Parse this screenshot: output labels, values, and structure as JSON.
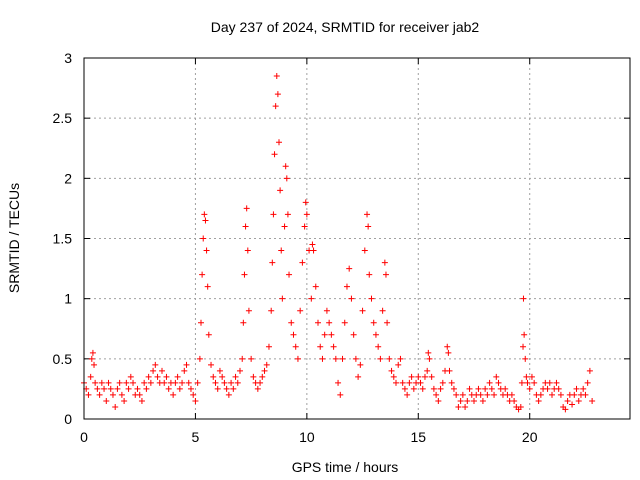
{
  "chart_data": {
    "type": "scatter",
    "title": "Day 237 of 2024, SRMTID for receiver jab2",
    "xlabel": "GPS time / hours",
    "ylabel": "SRMTID / TECUs",
    "xlim": [
      0,
      24.5
    ],
    "ylim": [
      0,
      3
    ],
    "xticks": [
      0,
      5,
      10,
      15,
      20
    ],
    "yticks": [
      0,
      0.5,
      1,
      1.5,
      2,
      2.5,
      3
    ],
    "xtick_labels": [
      "0",
      "5",
      "10",
      "15",
      "20"
    ],
    "ytick_labels": [
      "0",
      "0.5",
      "1",
      "1.5",
      "2",
      "2.5",
      "3"
    ],
    "grid": true,
    "marker": "+",
    "color": "#ff0000",
    "series": [
      {
        "name": "jab2",
        "points": [
          [
            0.0,
            0.3
          ],
          [
            0.1,
            0.25
          ],
          [
            0.2,
            0.2
          ],
          [
            0.3,
            0.35
          ],
          [
            0.35,
            0.5
          ],
          [
            0.4,
            0.55
          ],
          [
            0.45,
            0.45
          ],
          [
            0.5,
            0.3
          ],
          [
            0.6,
            0.25
          ],
          [
            0.7,
            0.2
          ],
          [
            0.8,
            0.3
          ],
          [
            0.9,
            0.25
          ],
          [
            1.0,
            0.15
          ],
          [
            1.1,
            0.3
          ],
          [
            1.2,
            0.25
          ],
          [
            1.3,
            0.2
          ],
          [
            1.4,
            0.1
          ],
          [
            1.5,
            0.25
          ],
          [
            1.6,
            0.3
          ],
          [
            1.7,
            0.2
          ],
          [
            1.8,
            0.15
          ],
          [
            1.9,
            0.3
          ],
          [
            2.0,
            0.25
          ],
          [
            2.1,
            0.35
          ],
          [
            2.2,
            0.3
          ],
          [
            2.3,
            0.2
          ],
          [
            2.4,
            0.25
          ],
          [
            2.5,
            0.2
          ],
          [
            2.6,
            0.15
          ],
          [
            2.7,
            0.3
          ],
          [
            2.8,
            0.25
          ],
          [
            2.9,
            0.35
          ],
          [
            3.0,
            0.3
          ],
          [
            3.1,
            0.4
          ],
          [
            3.2,
            0.45
          ],
          [
            3.3,
            0.35
          ],
          [
            3.4,
            0.3
          ],
          [
            3.5,
            0.4
          ],
          [
            3.6,
            0.3
          ],
          [
            3.7,
            0.35
          ],
          [
            3.8,
            0.25
          ],
          [
            3.9,
            0.3
          ],
          [
            4.0,
            0.2
          ],
          [
            4.1,
            0.3
          ],
          [
            4.2,
            0.35
          ],
          [
            4.3,
            0.25
          ],
          [
            4.4,
            0.3
          ],
          [
            4.5,
            0.4
          ],
          [
            4.6,
            0.45
          ],
          [
            4.7,
            0.3
          ],
          [
            4.8,
            0.25
          ],
          [
            4.9,
            0.2
          ],
          [
            5.0,
            0.15
          ],
          [
            5.1,
            0.3
          ],
          [
            5.2,
            0.5
          ],
          [
            5.25,
            0.8
          ],
          [
            5.3,
            1.2
          ],
          [
            5.35,
            1.5
          ],
          [
            5.4,
            1.7
          ],
          [
            5.45,
            1.65
          ],
          [
            5.5,
            1.4
          ],
          [
            5.55,
            1.1
          ],
          [
            5.6,
            0.7
          ],
          [
            5.7,
            0.45
          ],
          [
            5.8,
            0.35
          ],
          [
            5.9,
            0.3
          ],
          [
            6.0,
            0.25
          ],
          [
            6.1,
            0.4
          ],
          [
            6.2,
            0.35
          ],
          [
            6.3,
            0.3
          ],
          [
            6.4,
            0.25
          ],
          [
            6.5,
            0.2
          ],
          [
            6.6,
            0.3
          ],
          [
            6.7,
            0.25
          ],
          [
            6.8,
            0.35
          ],
          [
            6.9,
            0.3
          ],
          [
            7.0,
            0.4
          ],
          [
            7.1,
            0.5
          ],
          [
            7.15,
            0.8
          ],
          [
            7.2,
            1.2
          ],
          [
            7.25,
            1.6
          ],
          [
            7.3,
            1.75
          ],
          [
            7.35,
            1.4
          ],
          [
            7.4,
            0.9
          ],
          [
            7.5,
            0.5
          ],
          [
            7.6,
            0.35
          ],
          [
            7.7,
            0.3
          ],
          [
            7.8,
            0.25
          ],
          [
            7.9,
            0.3
          ],
          [
            8.0,
            0.35
          ],
          [
            8.1,
            0.4
          ],
          [
            8.2,
            0.45
          ],
          [
            8.3,
            0.6
          ],
          [
            8.4,
            0.9
          ],
          [
            8.45,
            1.3
          ],
          [
            8.5,
            1.7
          ],
          [
            8.55,
            2.2
          ],
          [
            8.6,
            2.6
          ],
          [
            8.65,
            2.85
          ],
          [
            8.7,
            2.7
          ],
          [
            8.75,
            2.3
          ],
          [
            8.8,
            1.9
          ],
          [
            8.85,
            1.4
          ],
          [
            8.9,
            1.0
          ],
          [
            9.0,
            1.6
          ],
          [
            9.05,
            2.1
          ],
          [
            9.1,
            2.0
          ],
          [
            9.15,
            1.7
          ],
          [
            9.2,
            1.2
          ],
          [
            9.3,
            0.8
          ],
          [
            9.4,
            0.7
          ],
          [
            9.5,
            0.6
          ],
          [
            9.6,
            0.5
          ],
          [
            9.7,
            0.9
          ],
          [
            9.8,
            1.3
          ],
          [
            9.9,
            1.6
          ],
          [
            9.95,
            1.8
          ],
          [
            10.0,
            1.7
          ],
          [
            10.1,
            1.4
          ],
          [
            10.2,
            1.0
          ],
          [
            10.25,
            1.45
          ],
          [
            10.3,
            1.4
          ],
          [
            10.4,
            1.1
          ],
          [
            10.5,
            0.8
          ],
          [
            10.6,
            0.6
          ],
          [
            10.7,
            0.5
          ],
          [
            10.8,
            0.7
          ],
          [
            10.9,
            0.9
          ],
          [
            11.0,
            0.8
          ],
          [
            11.1,
            0.7
          ],
          [
            11.2,
            0.6
          ],
          [
            11.3,
            0.5
          ],
          [
            11.4,
            0.3
          ],
          [
            11.5,
            0.2
          ],
          [
            11.6,
            0.5
          ],
          [
            11.7,
            0.8
          ],
          [
            11.8,
            1.1
          ],
          [
            11.9,
            1.25
          ],
          [
            12.0,
            1.0
          ],
          [
            12.1,
            0.7
          ],
          [
            12.2,
            0.5
          ],
          [
            12.3,
            0.35
          ],
          [
            12.4,
            0.45
          ],
          [
            12.5,
            0.9
          ],
          [
            12.6,
            1.4
          ],
          [
            12.7,
            1.7
          ],
          [
            12.75,
            1.6
          ],
          [
            12.8,
            1.2
          ],
          [
            12.9,
            1.0
          ],
          [
            13.0,
            0.8
          ],
          [
            13.1,
            0.7
          ],
          [
            13.2,
            0.6
          ],
          [
            13.3,
            0.5
          ],
          [
            13.4,
            0.9
          ],
          [
            13.5,
            1.3
          ],
          [
            13.55,
            1.2
          ],
          [
            13.6,
            0.8
          ],
          [
            13.7,
            0.5
          ],
          [
            13.8,
            0.4
          ],
          [
            13.9,
            0.35
          ],
          [
            14.0,
            0.3
          ],
          [
            14.1,
            0.45
          ],
          [
            14.2,
            0.5
          ],
          [
            14.3,
            0.3
          ],
          [
            14.4,
            0.25
          ],
          [
            14.5,
            0.2
          ],
          [
            14.6,
            0.3
          ],
          [
            14.7,
            0.35
          ],
          [
            14.8,
            0.25
          ],
          [
            14.9,
            0.3
          ],
          [
            15.0,
            0.35
          ],
          [
            15.1,
            0.3
          ],
          [
            15.2,
            0.25
          ],
          [
            15.3,
            0.35
          ],
          [
            15.4,
            0.4
          ],
          [
            15.45,
            0.55
          ],
          [
            15.5,
            0.5
          ],
          [
            15.6,
            0.35
          ],
          [
            15.7,
            0.25
          ],
          [
            15.8,
            0.2
          ],
          [
            15.9,
            0.15
          ],
          [
            16.0,
            0.25
          ],
          [
            16.1,
            0.3
          ],
          [
            16.2,
            0.4
          ],
          [
            16.3,
            0.6
          ],
          [
            16.35,
            0.55
          ],
          [
            16.4,
            0.4
          ],
          [
            16.5,
            0.3
          ],
          [
            16.6,
            0.25
          ],
          [
            16.7,
            0.2
          ],
          [
            16.8,
            0.1
          ],
          [
            16.9,
            0.15
          ],
          [
            17.0,
            0.2
          ],
          [
            17.1,
            0.1
          ],
          [
            17.2,
            0.15
          ],
          [
            17.3,
            0.25
          ],
          [
            17.4,
            0.2
          ],
          [
            17.5,
            0.15
          ],
          [
            17.6,
            0.2
          ],
          [
            17.7,
            0.25
          ],
          [
            17.8,
            0.2
          ],
          [
            17.9,
            0.15
          ],
          [
            18.0,
            0.25
          ],
          [
            18.1,
            0.2
          ],
          [
            18.2,
            0.3
          ],
          [
            18.3,
            0.25
          ],
          [
            18.4,
            0.2
          ],
          [
            18.5,
            0.35
          ],
          [
            18.6,
            0.3
          ],
          [
            18.7,
            0.25
          ],
          [
            18.8,
            0.2
          ],
          [
            18.9,
            0.25
          ],
          [
            19.0,
            0.2
          ],
          [
            19.1,
            0.15
          ],
          [
            19.2,
            0.2
          ],
          [
            19.3,
            0.15
          ],
          [
            19.4,
            0.1
          ],
          [
            19.5,
            0.08
          ],
          [
            19.6,
            0.1
          ],
          [
            19.65,
            0.3
          ],
          [
            19.7,
            0.6
          ],
          [
            19.72,
            1.0
          ],
          [
            19.75,
            0.7
          ],
          [
            19.8,
            0.5
          ],
          [
            19.85,
            0.35
          ],
          [
            19.9,
            0.3
          ],
          [
            20.0,
            0.25
          ],
          [
            20.1,
            0.35
          ],
          [
            20.2,
            0.3
          ],
          [
            20.3,
            0.2
          ],
          [
            20.4,
            0.15
          ],
          [
            20.5,
            0.2
          ],
          [
            20.6,
            0.25
          ],
          [
            20.7,
            0.3
          ],
          [
            20.8,
            0.25
          ],
          [
            20.9,
            0.3
          ],
          [
            21.0,
            0.2
          ],
          [
            21.1,
            0.25
          ],
          [
            21.2,
            0.3
          ],
          [
            21.3,
            0.25
          ],
          [
            21.4,
            0.2
          ],
          [
            21.5,
            0.1
          ],
          [
            21.6,
            0.08
          ],
          [
            21.7,
            0.15
          ],
          [
            21.8,
            0.2
          ],
          [
            21.9,
            0.12
          ],
          [
            22.0,
            0.2
          ],
          [
            22.1,
            0.25
          ],
          [
            22.2,
            0.15
          ],
          [
            22.3,
            0.2
          ],
          [
            22.4,
            0.25
          ],
          [
            22.5,
            0.2
          ],
          [
            22.6,
            0.3
          ],
          [
            22.7,
            0.4
          ],
          [
            22.8,
            0.15
          ]
        ]
      }
    ]
  }
}
